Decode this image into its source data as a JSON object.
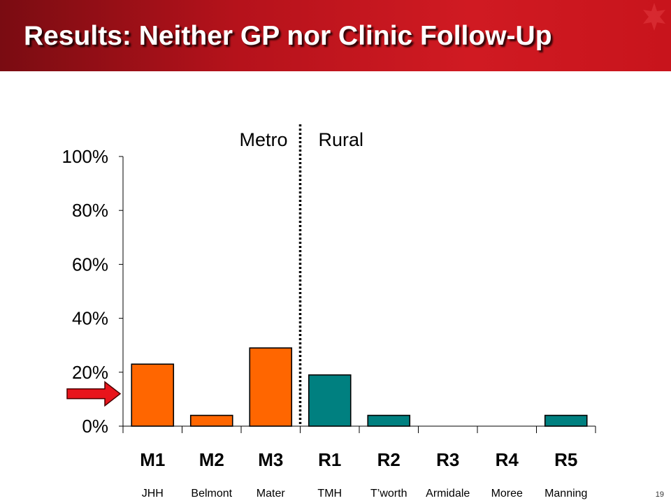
{
  "slide": {
    "title": "Results: Neither GP nor Clinic Follow-Up",
    "page_number": "19",
    "title_bar_color": "#b5121b"
  },
  "colors": {
    "metro": "#ff6600",
    "rural": "#008080",
    "arrow": "#e8141b",
    "divider": "#000000"
  },
  "chart_data": {
    "type": "bar",
    "categories": [
      "M1",
      "M2",
      "M3",
      "R1",
      "R2",
      "R3",
      "R4",
      "R5"
    ],
    "sublabels": [
      "JHH",
      "Belmont",
      "Mater",
      "TMH",
      "T’worth",
      "Armidale",
      "Moree",
      "Manning"
    ],
    "values": [
      23,
      4,
      29,
      19,
      4,
      0,
      0,
      4
    ],
    "groups": [
      "metro",
      "metro",
      "metro",
      "rural",
      "rural",
      "rural",
      "rural",
      "rural"
    ],
    "group_labels": {
      "metro": "Metro",
      "rural": "Rural"
    },
    "yticks": [
      "0%",
      "20%",
      "40%",
      "60%",
      "80%",
      "100%"
    ],
    "ylim": [
      0,
      100
    ],
    "reference_arrow_value": 12,
    "grid": false,
    "legend": "none"
  }
}
